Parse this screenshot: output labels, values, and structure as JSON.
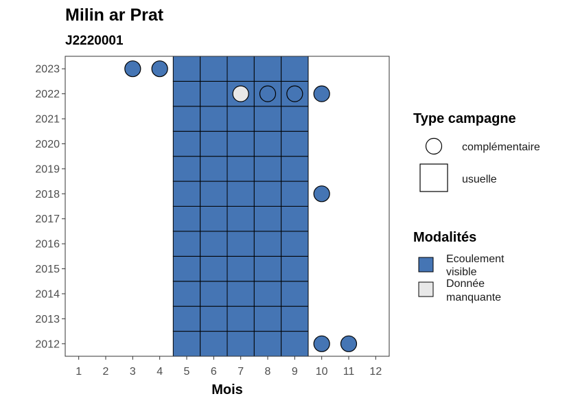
{
  "chart_data": {
    "type": "heatmap",
    "title": "Milin ar Prat",
    "subtitle": "J2220001",
    "xlabel": "Mois",
    "ylabel": "",
    "x_ticks": [
      1,
      2,
      3,
      4,
      5,
      6,
      7,
      8,
      9,
      10,
      11,
      12
    ],
    "y_ticks": [
      2012,
      2013,
      2014,
      2015,
      2016,
      2017,
      2018,
      2019,
      2020,
      2021,
      2022,
      2023
    ],
    "xlim": [
      0.5,
      12.5
    ],
    "ylim": [
      2011.5,
      2023.5
    ],
    "grid": false,
    "colors": {
      "Ecoulement visible": "#4575b4",
      "Donnée manquante": "#e8e8e8"
    },
    "legends": [
      {
        "title": "Type campagne",
        "placement": "right",
        "entries": [
          {
            "label": "complémentaire",
            "shape": "circle"
          },
          {
            "label": "usuelle",
            "shape": "square"
          }
        ]
      },
      {
        "title": "Modalités",
        "placement": "right",
        "entries": [
          {
            "label_lines": [
              "Ecoulement",
              "visible"
            ],
            "key": "Ecoulement visible"
          },
          {
            "label_lines": [
              "Donnée",
              "manquante"
            ],
            "key": "Donnée manquante"
          }
        ]
      }
    ],
    "usuelle": [
      {
        "year": 2012,
        "months": [
          5,
          6,
          7,
          8,
          9
        ],
        "modalite": "Ecoulement visible"
      },
      {
        "year": 2013,
        "months": [
          5,
          6,
          7,
          8,
          9
        ],
        "modalite": "Ecoulement visible"
      },
      {
        "year": 2014,
        "months": [
          5,
          6,
          7,
          8,
          9
        ],
        "modalite": "Ecoulement visible"
      },
      {
        "year": 2015,
        "months": [
          5,
          6,
          7,
          8,
          9
        ],
        "modalite": "Ecoulement visible"
      },
      {
        "year": 2016,
        "months": [
          5,
          6,
          7,
          8,
          9
        ],
        "modalite": "Ecoulement visible"
      },
      {
        "year": 2017,
        "months": [
          5,
          6,
          7,
          8,
          9
        ],
        "modalite": "Ecoulement visible"
      },
      {
        "year": 2018,
        "months": [
          5,
          6,
          7,
          8,
          9
        ],
        "modalite": "Ecoulement visible"
      },
      {
        "year": 2019,
        "months": [
          5,
          6,
          7,
          8,
          9
        ],
        "modalite": "Ecoulement visible"
      },
      {
        "year": 2020,
        "months": [
          5,
          6,
          7,
          8,
          9
        ],
        "modalite": "Ecoulement visible"
      },
      {
        "year": 2021,
        "months": [
          5,
          6,
          7,
          8,
          9
        ],
        "modalite": "Ecoulement visible"
      },
      {
        "year": 2022,
        "months": [
          5,
          6,
          7,
          8,
          9
        ],
        "modalite": "Ecoulement visible"
      },
      {
        "year": 2023,
        "months": [
          5,
          6,
          7,
          8,
          9
        ],
        "modalite": "Ecoulement visible"
      }
    ],
    "complementaire": [
      {
        "year": 2023,
        "month": 3,
        "modalite": "Ecoulement visible"
      },
      {
        "year": 2023,
        "month": 4,
        "modalite": "Ecoulement visible"
      },
      {
        "year": 2022,
        "month": 7,
        "modalite": "Donnée manquante"
      },
      {
        "year": 2022,
        "month": 8,
        "modalite": "Ecoulement visible"
      },
      {
        "year": 2022,
        "month": 9,
        "modalite": "Ecoulement visible"
      },
      {
        "year": 2022,
        "month": 10,
        "modalite": "Ecoulement visible"
      },
      {
        "year": 2018,
        "month": 10,
        "modalite": "Ecoulement visible"
      },
      {
        "year": 2012,
        "month": 10,
        "modalite": "Ecoulement visible"
      },
      {
        "year": 2012,
        "month": 11,
        "modalite": "Ecoulement visible"
      }
    ]
  }
}
